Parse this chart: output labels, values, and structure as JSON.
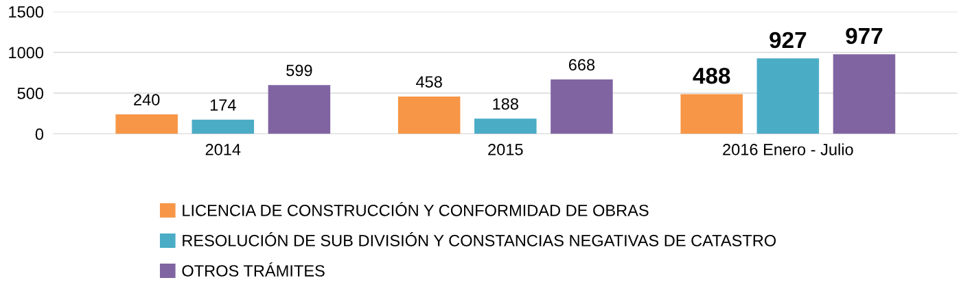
{
  "chart_data": {
    "type": "bar",
    "categories": [
      "2014",
      "2015",
      "2016 Enero - Julio"
    ],
    "series": [
      {
        "name": "LICENCIA DE CONSTRUCCIÓN Y CONFORMIDAD DE OBRAS",
        "color": "#f79646",
        "values": [
          240,
          458,
          488
        ]
      },
      {
        "name": "RESOLUCIÓN DE SUB DIVISIÓN Y CONSTANCIAS NEGATIVAS DE CATASTRO",
        "color": "#4bacc6",
        "values": [
          174,
          188,
          927
        ]
      },
      {
        "name": "OTROS TRÁMITES",
        "color": "#8064a2",
        "values": [
          599,
          668,
          977
        ]
      }
    ],
    "ylim": [
      0,
      1500
    ],
    "yticks": [
      0,
      500,
      1000,
      1500
    ],
    "grid": "y",
    "legend": "bottom",
    "data_labels": true
  }
}
